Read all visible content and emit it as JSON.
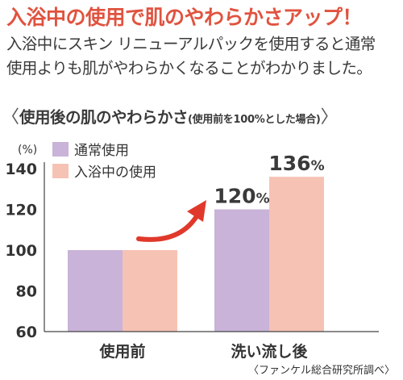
{
  "headline": "入浴中の使用で肌のやわらかさアップ！",
  "intro": {
    "line1": "入浴中にスキン リニューアルパックを使用すると通常",
    "line2": "使用よりも肌がやわらかくなることがわかりました。"
  },
  "chart_heading": {
    "open": "〈",
    "main": "使用後の肌のやわらかさ",
    "sub": "(使用前を100%とした場合)",
    "close": "〉"
  },
  "source": "〈ファンケル総合研究所調べ〉",
  "chart_data": {
    "type": "bar",
    "title": "使用後の肌のやわらかさ",
    "unit_label": "(%)",
    "categories": [
      "使用前",
      "洗い流し後"
    ],
    "series": [
      {
        "name": "通常使用",
        "values": [
          100,
          120
        ],
        "color": "#c9b3d8"
      },
      {
        "name": "入浴中の使用",
        "values": [
          100,
          136
        ],
        "color": "#f6c2b4"
      }
    ],
    "value_labels": [
      {
        "category": 1,
        "series": 0,
        "text": "120%"
      },
      {
        "category": 1,
        "series": 1,
        "text": "136%"
      }
    ],
    "ylim": [
      60,
      140
    ],
    "yticks": [
      60,
      80,
      100,
      120,
      140
    ],
    "grid": false,
    "legend_position": "top-left",
    "annotation": "red curved arrow pointing up toward the 洗い流し後 bars",
    "arrow_color": "#e0392b"
  }
}
